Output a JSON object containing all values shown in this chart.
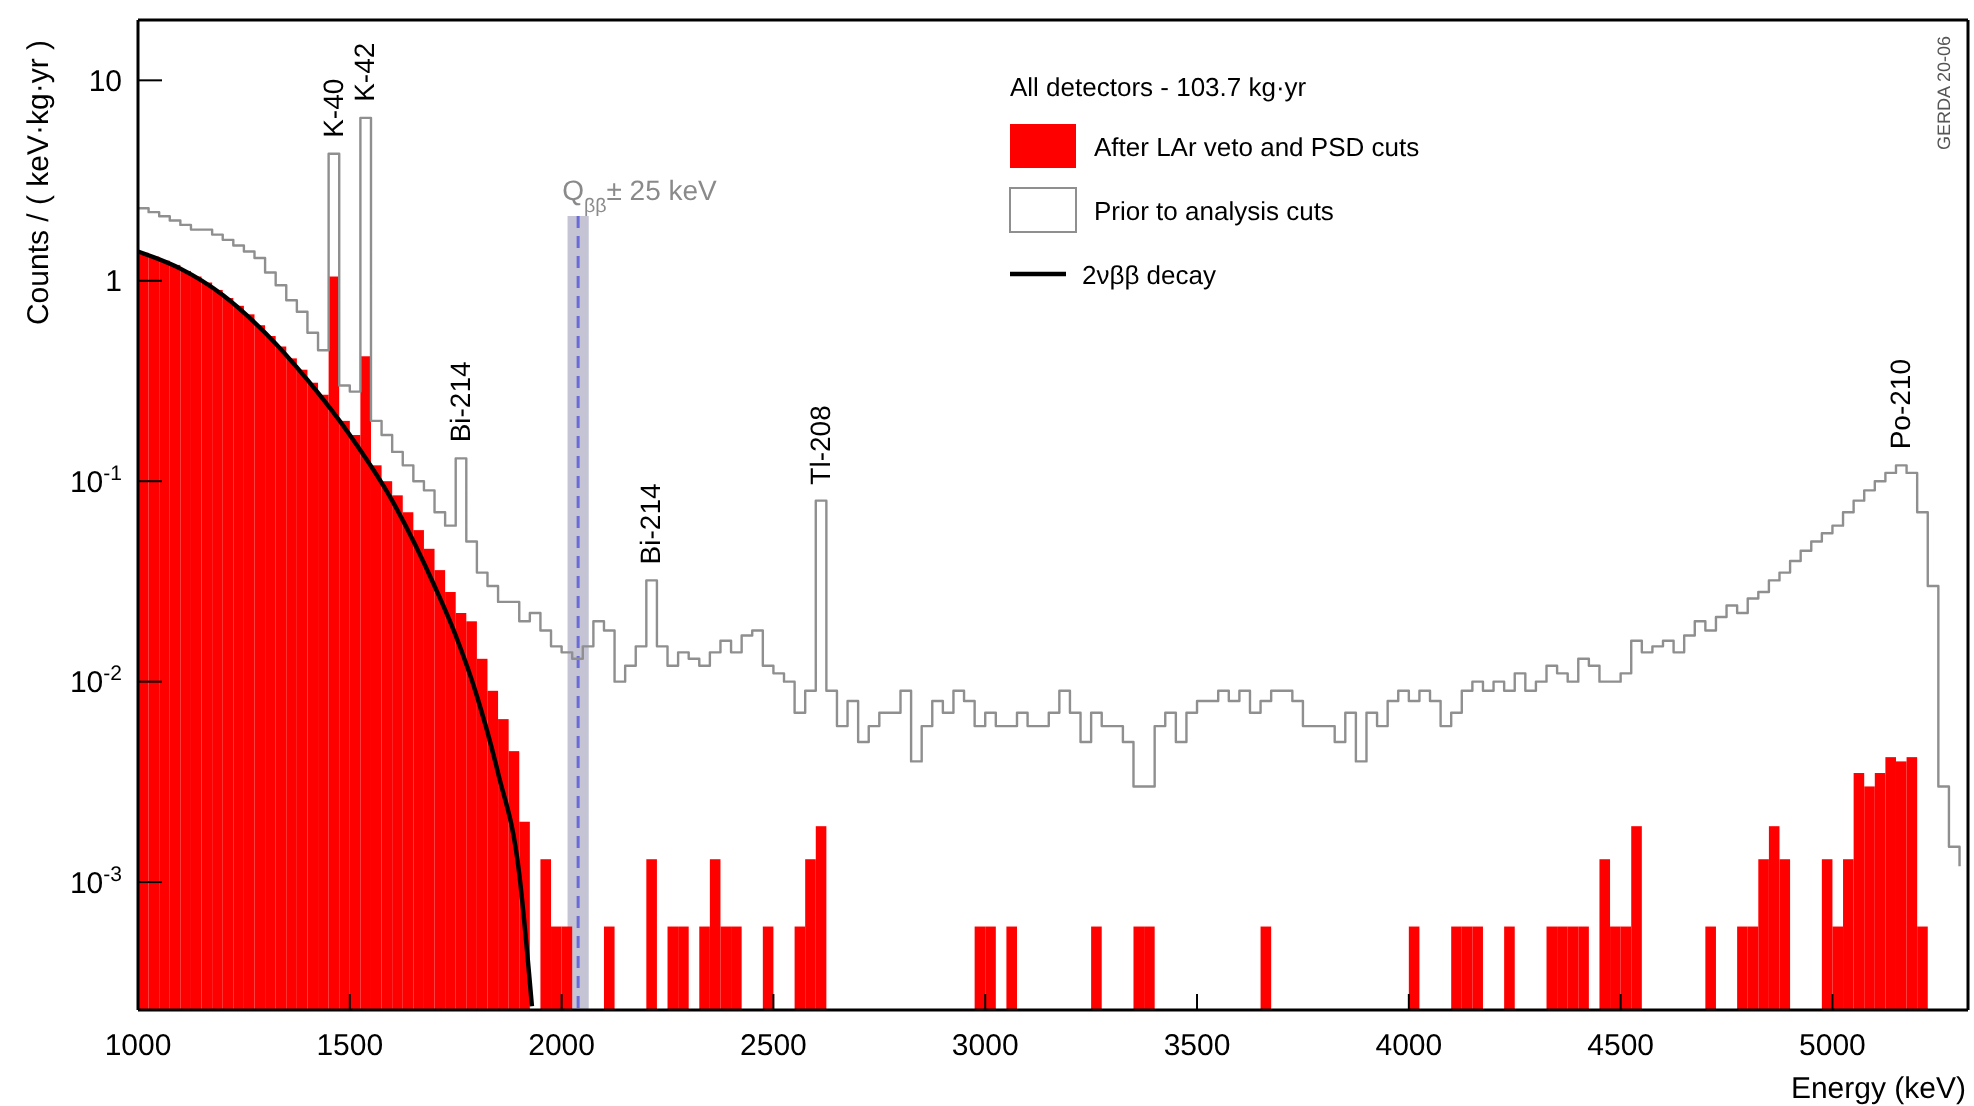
{
  "chart_data": {
    "type": "histogram",
    "xlabel": "Energy (keV)",
    "ylabel": "Counts / ( keV·kg·yr )",
    "legend_title": "All detectors - 103.7 kg·yr",
    "legend": "top right",
    "log": true,
    "grid": false,
    "xlim": [
      1000,
      5320
    ],
    "xticks": [
      1000,
      1500,
      2000,
      2500,
      3000,
      3500,
      4000,
      4500,
      5000
    ],
    "ylim": [
      0.00023,
      20
    ],
    "yticks": [
      {
        "value": 0.001,
        "label": "10$^{-3}$"
      },
      {
        "value": 0.01,
        "label": "10$^{-2}$"
      },
      {
        "value": 0.1,
        "label": "10$^{-1}$"
      },
      1,
      10
    ],
    "bins": [
      1000,
      1025,
      1050,
      1075,
      1100,
      1125,
      1150,
      1175,
      1200,
      1225,
      1250,
      1275,
      1300,
      1325,
      1350,
      1375,
      1400,
      1425,
      1450,
      1475,
      1500,
      1525,
      1550,
      1575,
      1600,
      1625,
      1650,
      1675,
      1700,
      1725,
      1750,
      1775,
      1800,
      1825,
      1850,
      1875,
      1900,
      1925,
      1950,
      1975,
      2000,
      2025,
      2100,
      2125,
      2200,
      2225,
      2250,
      2275,
      2300,
      2325,
      2350,
      2375,
      2400,
      2425,
      2475,
      2500,
      2550,
      2575,
      2600,
      2625,
      2975,
      3000,
      3025,
      3050,
      3075,
      3250,
      3275,
      3350,
      3375,
      3400,
      3650,
      3675,
      4000,
      4025,
      4100,
      4125,
      4150,
      4175,
      4225,
      4250,
      4325,
      4350,
      4375,
      4400,
      4425,
      4450,
      4475,
      4500,
      4525,
      4550,
      4700,
      4725,
      4775,
      4800,
      4825,
      4850,
      4875,
      4900,
      4975,
      5000,
      5025,
      5050,
      5075,
      5100,
      5125,
      5150,
      5175,
      5200,
      5225
    ],
    "series": [
      {
        "name": "After LAr veto and PSD cuts",
        "color": "#ff0000",
        "values": [
          1.38,
          1.32,
          1.26,
          1.2,
          1.12,
          1.05,
          0.98,
          0.9,
          0.82,
          0.75,
          0.68,
          0.6,
          0.53,
          0.47,
          0.41,
          0.36,
          0.31,
          0.27,
          1.05,
          0.2,
          0.17,
          0.42,
          0.12,
          0.1,
          0.085,
          0.07,
          0.057,
          0.046,
          0.036,
          0.028,
          0.022,
          0.02,
          0.013,
          0.009,
          0.0065,
          0.0045,
          0.002,
          null,
          0.0013,
          0.0006,
          0.0006,
          null,
          0.0006,
          null,
          0.0013,
          null,
          0.0006,
          0.0006,
          null,
          0.0006,
          0.0013,
          0.0006,
          0.0006,
          null,
          0.0006,
          null,
          0.0006,
          0.0013,
          0.0019,
          null,
          0.0006,
          0.0006,
          null,
          0.0006,
          null,
          0.0006,
          null,
          0.0006,
          0.0006,
          null,
          0.0006,
          null,
          0.0006,
          null,
          0.0006,
          0.0006,
          0.0006,
          null,
          0.0006,
          null,
          0.0006,
          0.0006,
          0.0006,
          0.0006,
          null,
          0.0013,
          0.0006,
          0.0006,
          0.0019,
          null,
          0.0006,
          null,
          0.0006,
          0.0006,
          0.0013,
          0.0019,
          0.0013,
          null,
          0.0013,
          0.0006,
          0.0013,
          0.0035,
          0.003,
          0.0035,
          0.0042,
          0.004,
          0.0042,
          0.0006
        ]
      },
      {
        "name": "Prior to analysis cuts",
        "type": "step",
        "color": "#8f8f8f",
        "x": [
          1000,
          1025,
          1050,
          1075,
          1100,
          1125,
          1150,
          1175,
          1200,
          1225,
          1250,
          1275,
          1300,
          1325,
          1350,
          1375,
          1400,
          1425,
          1450,
          1475,
          1500,
          1525,
          1550,
          1575,
          1600,
          1625,
          1650,
          1675,
          1700,
          1725,
          1750,
          1775,
          1800,
          1825,
          1850,
          1875,
          1900,
          1925,
          1950,
          1975,
          2000,
          2025,
          2050,
          2075,
          2100,
          2125,
          2150,
          2175,
          2200,
          2225,
          2250,
          2275,
          2300,
          2325,
          2350,
          2375,
          2400,
          2425,
          2450,
          2475,
          2500,
          2525,
          2550,
          2575,
          2600,
          2625,
          2650,
          2675,
          2700,
          2725,
          2750,
          2775,
          2800,
          2825,
          2850,
          2875,
          2900,
          2925,
          2950,
          2975,
          3000,
          3025,
          3050,
          3075,
          3100,
          3125,
          3150,
          3175,
          3200,
          3225,
          3250,
          3275,
          3300,
          3325,
          3350,
          3375,
          3400,
          3425,
          3450,
          3475,
          3500,
          3525,
          3550,
          3575,
          3600,
          3625,
          3650,
          3675,
          3700,
          3725,
          3750,
          3775,
          3800,
          3825,
          3850,
          3875,
          3900,
          3925,
          3950,
          3975,
          4000,
          4025,
          4050,
          4075,
          4100,
          4125,
          4150,
          4175,
          4200,
          4225,
          4250,
          4275,
          4300,
          4325,
          4350,
          4375,
          4400,
          4425,
          4450,
          4475,
          4500,
          4525,
          4550,
          4575,
          4600,
          4625,
          4650,
          4675,
          4700,
          4725,
          4750,
          4775,
          4800,
          4825,
          4850,
          4875,
          4900,
          4925,
          4950,
          4975,
          5000,
          5025,
          5050,
          5075,
          5100,
          5125,
          5150,
          5175,
          5200,
          5225,
          5250,
          5275,
          5300
        ],
        "values": [
          2.3,
          2.2,
          2.1,
          2.0,
          1.9,
          1.8,
          1.8,
          1.7,
          1.6,
          1.5,
          1.4,
          1.3,
          1.1,
          0.95,
          0.8,
          0.7,
          0.55,
          0.45,
          4.3,
          0.3,
          0.28,
          6.5,
          0.2,
          0.17,
          0.14,
          0.12,
          0.1,
          0.09,
          0.07,
          0.06,
          0.13,
          0.05,
          0.035,
          0.03,
          0.025,
          0.025,
          0.02,
          0.022,
          0.018,
          0.015,
          0.014,
          0.013,
          0.015,
          0.02,
          0.018,
          0.01,
          0.012,
          0.015,
          0.032,
          0.015,
          0.012,
          0.014,
          0.013,
          0.012,
          0.014,
          0.016,
          0.014,
          0.017,
          0.018,
          0.012,
          0.011,
          0.01,
          0.007,
          0.009,
          0.08,
          0.009,
          0.006,
          0.008,
          0.005,
          0.006,
          0.007,
          0.007,
          0.009,
          0.004,
          0.006,
          0.008,
          0.007,
          0.009,
          0.008,
          0.006,
          0.007,
          0.006,
          0.006,
          0.007,
          0.006,
          0.006,
          0.007,
          0.009,
          0.007,
          0.005,
          0.007,
          0.006,
          0.006,
          0.005,
          0.003,
          0.003,
          0.006,
          0.007,
          0.005,
          0.007,
          0.008,
          0.008,
          0.009,
          0.008,
          0.009,
          0.007,
          0.008,
          0.009,
          0.009,
          0.008,
          0.006,
          0.006,
          0.006,
          0.005,
          0.007,
          0.004,
          0.007,
          0.006,
          0.008,
          0.009,
          0.008,
          0.009,
          0.008,
          0.006,
          0.007,
          0.009,
          0.01,
          0.009,
          0.01,
          0.009,
          0.011,
          0.009,
          0.01,
          0.012,
          0.011,
          0.01,
          0.013,
          0.012,
          0.01,
          0.01,
          0.011,
          0.016,
          0.014,
          0.015,
          0.016,
          0.014,
          0.017,
          0.02,
          0.018,
          0.021,
          0.024,
          0.022,
          0.026,
          0.028,
          0.032,
          0.035,
          0.04,
          0.045,
          0.05,
          0.055,
          0.06,
          0.07,
          0.08,
          0.09,
          0.1,
          0.11,
          0.12,
          0.11,
          0.07,
          0.03,
          0.003,
          0.0015,
          0.0012
        ]
      },
      {
        "name": "2νββ decay",
        "type": "line",
        "color": "#000000",
        "x": [
          1000,
          1100,
          1200,
          1300,
          1400,
          1500,
          1600,
          1700,
          1750,
          1800,
          1850,
          1900,
          1930
        ],
        "values": [
          1.4,
          1.15,
          0.85,
          0.55,
          0.32,
          0.17,
          0.08,
          0.03,
          0.017,
          0.0085,
          0.0035,
          0.0011,
          0.00024
        ]
      }
    ],
    "bands": [
      {
        "axis": "x",
        "from": 2014,
        "to": 2064,
        "label": "Q$_{ββ}$± 25 keV",
        "color": "#c4c4d4"
      }
    ],
    "ref_lines": [
      {
        "axis": "x",
        "value": 2039,
        "color": "#6a6ad8",
        "line_style": "dashed"
      }
    ],
    "annotations": [
      {
        "text": "K-40",
        "x": 1450,
        "y": 4.3
      },
      {
        "text": "K-42",
        "x": 1525,
        "y": 6.5
      },
      {
        "text": "Bi-214",
        "x": 1750,
        "y": 0.13
      },
      {
        "text": "Bi-214",
        "x": 2200,
        "y": 0.032
      },
      {
        "text": "Tl-208",
        "x": 2600,
        "y": 0.08
      },
      {
        "text": "Po-210",
        "x": 5150,
        "y": 0.12
      },
      "GERDA 20-06"
    ]
  }
}
